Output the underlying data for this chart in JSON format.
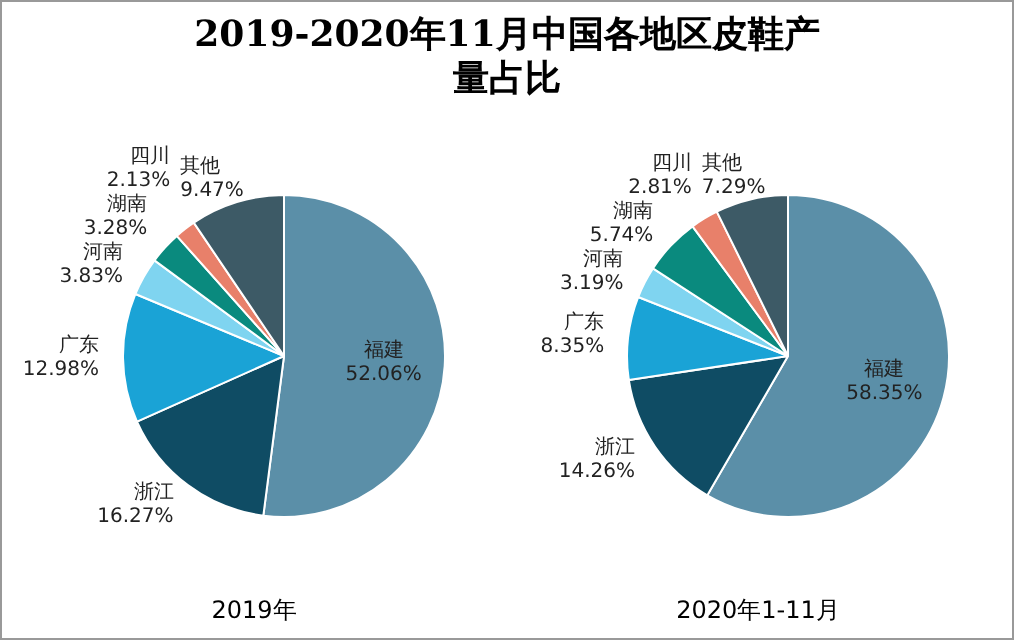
{
  "chart_data": [
    {
      "type": "pie",
      "title": "2019-2020年11月中国各地区皮鞋产量占比",
      "xlabel": "2019年",
      "legend": false,
      "categories": [
        "福建",
        "浙江",
        "广东",
        "河南",
        "湖南",
        "四川",
        "其他"
      ],
      "values": [
        52.06,
        16.27,
        12.98,
        3.83,
        3.28,
        2.13,
        9.47
      ],
      "value_labels": [
        "52.06%",
        "16.27%",
        "12.98%",
        "3.83%",
        "3.28%",
        "2.13%",
        "9.47%"
      ],
      "colors": [
        "#5b8fa8",
        "#0f4c64",
        "#1aa3d6",
        "#7fd4f0",
        "#0a8a7e",
        "#e8806a",
        "#3d5a66"
      ]
    },
    {
      "type": "pie",
      "xlabel": "2020年1-11月",
      "legend": false,
      "categories": [
        "福建",
        "浙江",
        "广东",
        "河南",
        "湖南",
        "四川",
        "其他"
      ],
      "values": [
        58.35,
        14.26,
        8.35,
        3.19,
        5.74,
        2.81,
        7.29
      ],
      "value_labels": [
        "58.35%",
        "14.26%",
        "8.35%",
        "3.19%",
        "5.74%",
        "2.81%",
        "7.29%"
      ],
      "colors": [
        "#5b8fa8",
        "#0f4c64",
        "#1aa3d6",
        "#7fd4f0",
        "#0a8a7e",
        "#e8806a",
        "#3d5a66"
      ]
    }
  ]
}
